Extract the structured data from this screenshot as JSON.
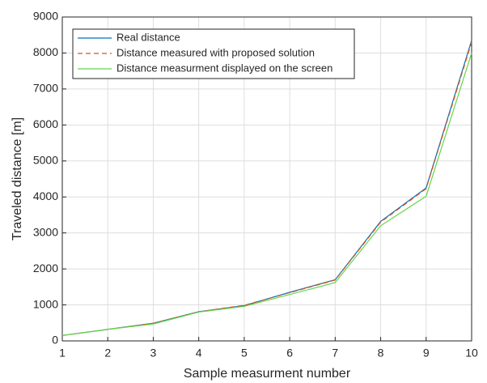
{
  "chart_data": {
    "type": "line",
    "xlabel": "Sample measurment number",
    "ylabel": "Traveled distance [m]",
    "x": [
      1,
      2,
      3,
      4,
      5,
      6,
      7,
      8,
      9,
      10
    ],
    "series": [
      {
        "name": "Real distance",
        "color": "#0072bd",
        "values": [
          150,
          320,
          490,
          810,
          980,
          1350,
          1700,
          3320,
          4250,
          8350
        ]
      },
      {
        "name": "Distance measured with proposed solution",
        "color": "#d95319",
        "style": "dashed",
        "values": [
          150,
          320,
          490,
          810,
          990,
          1340,
          1690,
          3300,
          4230,
          8300
        ]
      },
      {
        "name": "Distance measurment displayed on the screen",
        "color": "#66d44a",
        "values": [
          150,
          320,
          470,
          800,
          960,
          1290,
          1620,
          3200,
          4020,
          8000
        ]
      }
    ],
    "xlim": [
      1,
      10
    ],
    "xticks": [
      1,
      2,
      3,
      4,
      5,
      6,
      7,
      8,
      9,
      10
    ],
    "ylim": [
      0,
      9000
    ],
    "yticks": [
      0,
      1000,
      2000,
      3000,
      4000,
      5000,
      6000,
      7000,
      8000,
      9000
    ],
    "grid": true,
    "legend": "top-left"
  }
}
